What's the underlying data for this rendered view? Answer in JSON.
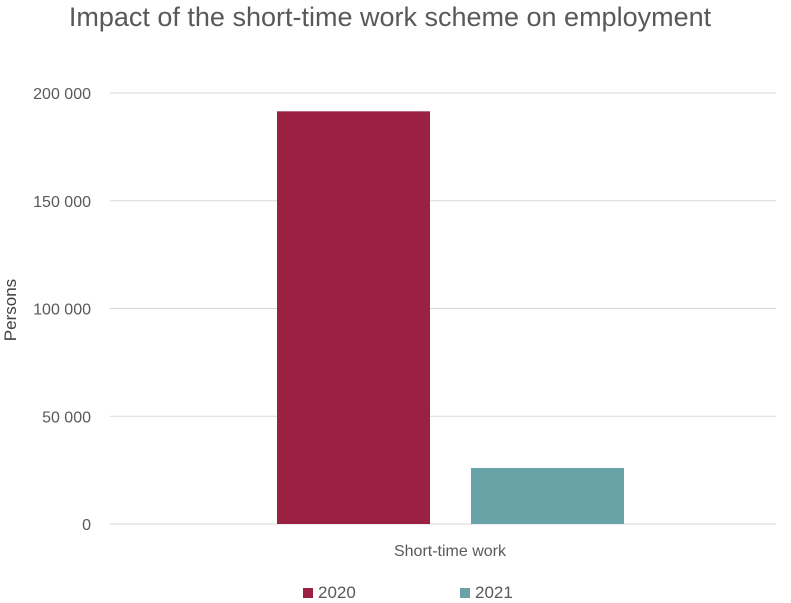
{
  "chart_data": {
    "type": "bar",
    "title": "Impact of the short-time work scheme on employment",
    "ylabel": "Persons",
    "categories": [
      "Short-time work"
    ],
    "series": [
      {
        "name": "2020",
        "values": [
          191500
        ],
        "color": "#9B2142"
      },
      {
        "name": "2021",
        "values": [
          26000
        ],
        "color": "#6AA3A7"
      }
    ],
    "ylim": [
      0,
      200000
    ],
    "yticks": [
      0,
      50000,
      100000,
      150000,
      200000
    ],
    "ytick_labels": [
      "0",
      "50 000",
      "100 000",
      "150 000",
      "200 000"
    ],
    "grid": true,
    "legend_position": "bottom"
  }
}
